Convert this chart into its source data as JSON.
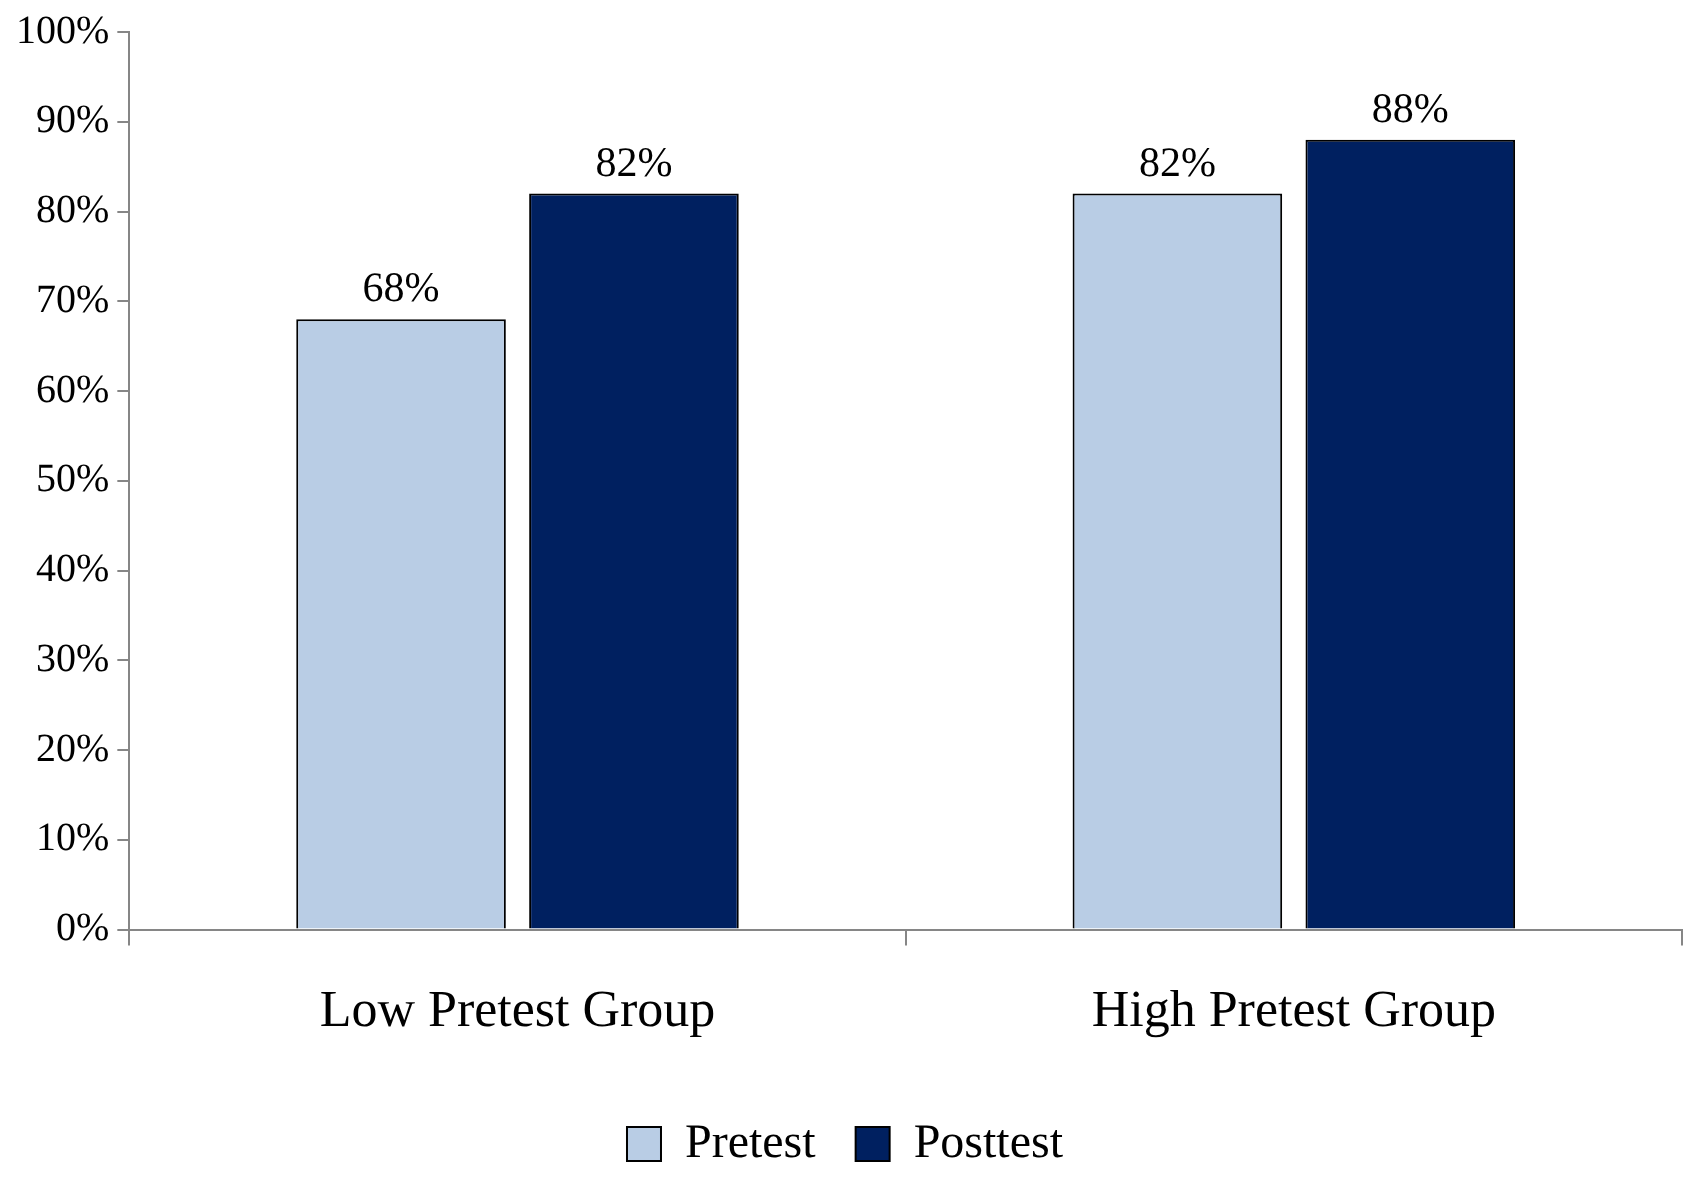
{
  "chart_data": {
    "type": "bar",
    "categories": [
      "Low Pretest Group",
      "High Pretest Group"
    ],
    "series": [
      {
        "name": "Pretest",
        "color": "#b9cde5",
        "values": [
          68,
          82
        ],
        "value_labels": [
          "68%",
          "82%"
        ]
      },
      {
        "name": "Posttest",
        "color": "#002060",
        "values": [
          82,
          88
        ],
        "value_labels": [
          "82%",
          "88%"
        ]
      }
    ],
    "ylim": [
      0,
      100
    ],
    "yticks": [
      {
        "value": 0,
        "label": "0%"
      },
      {
        "value": 10,
        "label": "10%"
      },
      {
        "value": 20,
        "label": "20%"
      },
      {
        "value": 30,
        "label": "30%"
      },
      {
        "value": 40,
        "label": "40%"
      },
      {
        "value": 50,
        "label": "50%"
      },
      {
        "value": 60,
        "label": "60%"
      },
      {
        "value": 70,
        "label": "70%"
      },
      {
        "value": 80,
        "label": "80%"
      },
      {
        "value": 90,
        "label": "90%"
      },
      {
        "value": 100,
        "label": "100%"
      }
    ],
    "grid": false,
    "legend": "bottom"
  }
}
